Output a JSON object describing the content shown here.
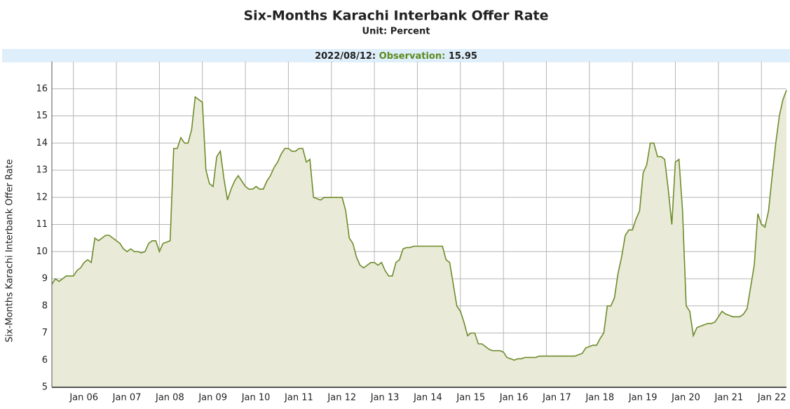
{
  "chart_data": {
    "type": "area",
    "title": "Six-Months Karachi Interbank Offer Rate",
    "subtitle": "Unit: Percent",
    "observation": {
      "date": "2022/08/12:",
      "label": "Observation:",
      "value": 15.95
    },
    "ylabel": "Six-Months Karachi Interbank Offer Rate",
    "color": "#6e8b2b",
    "fill": "#e9ebd8",
    "grid": true,
    "xlim": [
      "2005-07",
      "2022-08"
    ],
    "ylim": [
      5,
      17
    ],
    "yticks": [
      5,
      6,
      7,
      8,
      9,
      10,
      11,
      12,
      13,
      14,
      15,
      16
    ],
    "xticks": [
      {
        "value": "2006-01",
        "label": "Jan 06"
      },
      {
        "value": "2007-01",
        "label": "Jan 07"
      },
      {
        "value": "2008-01",
        "label": "Jan 08"
      },
      {
        "value": "2009-01",
        "label": "Jan 09"
      },
      {
        "value": "2010-01",
        "label": "Jan 10"
      },
      {
        "value": "2011-01",
        "label": "Jan 11"
      },
      {
        "value": "2012-01",
        "label": "Jan 12"
      },
      {
        "value": "2013-01",
        "label": "Jan 13"
      },
      {
        "value": "2014-01",
        "label": "Jan 14"
      },
      {
        "value": "2015-01",
        "label": "Jan 15"
      },
      {
        "value": "2016-01",
        "label": "Jan 16"
      },
      {
        "value": "2017-01",
        "label": "Jan 17"
      },
      {
        "value": "2018-01",
        "label": "Jan 18"
      },
      {
        "value": "2019-01",
        "label": "Jan 19"
      },
      {
        "value": "2020-01",
        "label": "Jan 20"
      },
      {
        "value": "2021-01",
        "label": "Jan 21"
      },
      {
        "value": "2022-01",
        "label": "Jan 22"
      }
    ],
    "x": [
      "2005-07",
      "2005-08",
      "2005-09",
      "2005-10",
      "2005-11",
      "2005-12",
      "2006-01",
      "2006-02",
      "2006-03",
      "2006-04",
      "2006-05",
      "2006-06",
      "2006-07",
      "2006-08",
      "2006-09",
      "2006-10",
      "2006-11",
      "2006-12",
      "2007-01",
      "2007-02",
      "2007-03",
      "2007-04",
      "2007-05",
      "2007-06",
      "2007-07",
      "2007-08",
      "2007-09",
      "2007-10",
      "2007-11",
      "2007-12",
      "2008-01",
      "2008-02",
      "2008-03",
      "2008-04",
      "2008-05",
      "2008-06",
      "2008-07",
      "2008-08",
      "2008-09",
      "2008-10",
      "2008-11",
      "2008-12",
      "2009-01",
      "2009-02",
      "2009-03",
      "2009-04",
      "2009-05",
      "2009-06",
      "2009-07",
      "2009-08",
      "2009-09",
      "2009-10",
      "2009-11",
      "2009-12",
      "2010-01",
      "2010-02",
      "2010-03",
      "2010-04",
      "2010-05",
      "2010-06",
      "2010-07",
      "2010-08",
      "2010-09",
      "2010-10",
      "2010-11",
      "2010-12",
      "2011-01",
      "2011-02",
      "2011-03",
      "2011-04",
      "2011-05",
      "2011-06",
      "2011-07",
      "2011-08",
      "2011-09",
      "2011-10",
      "2011-11",
      "2011-12",
      "2012-01",
      "2012-02",
      "2012-03",
      "2012-04",
      "2012-05",
      "2012-06",
      "2012-07",
      "2012-08",
      "2012-09",
      "2012-10",
      "2012-11",
      "2012-12",
      "2013-01",
      "2013-02",
      "2013-03",
      "2013-04",
      "2013-05",
      "2013-06",
      "2013-07",
      "2013-08",
      "2013-09",
      "2013-10",
      "2013-11",
      "2013-12",
      "2014-01",
      "2014-02",
      "2014-03",
      "2014-04",
      "2014-05",
      "2014-06",
      "2014-07",
      "2014-08",
      "2014-09",
      "2014-10",
      "2014-11",
      "2014-12",
      "2015-01",
      "2015-02",
      "2015-03",
      "2015-04",
      "2015-05",
      "2015-06",
      "2015-07",
      "2015-08",
      "2015-09",
      "2015-10",
      "2015-11",
      "2015-12",
      "2016-01",
      "2016-02",
      "2016-03",
      "2016-04",
      "2016-05",
      "2016-06",
      "2016-07",
      "2016-08",
      "2016-09",
      "2016-10",
      "2016-11",
      "2016-12",
      "2017-01",
      "2017-02",
      "2017-03",
      "2017-04",
      "2017-05",
      "2017-06",
      "2017-07",
      "2017-08",
      "2017-09",
      "2017-10",
      "2017-11",
      "2017-12",
      "2018-01",
      "2018-02",
      "2018-03",
      "2018-04",
      "2018-05",
      "2018-06",
      "2018-07",
      "2018-08",
      "2018-09",
      "2018-10",
      "2018-11",
      "2018-12",
      "2019-01",
      "2019-02",
      "2019-03",
      "2019-04",
      "2019-05",
      "2019-06",
      "2019-07",
      "2019-08",
      "2019-09",
      "2019-10",
      "2019-11",
      "2019-12",
      "2020-01",
      "2020-02",
      "2020-03",
      "2020-04",
      "2020-05",
      "2020-06",
      "2020-07",
      "2020-08",
      "2020-09",
      "2020-10",
      "2020-11",
      "2020-12",
      "2021-01",
      "2021-02",
      "2021-03",
      "2021-04",
      "2021-05",
      "2021-06",
      "2021-07",
      "2021-08",
      "2021-09",
      "2021-10",
      "2021-11",
      "2021-12",
      "2022-01",
      "2022-02",
      "2022-03",
      "2022-04",
      "2022-05",
      "2022-06",
      "2022-07",
      "2022-08"
    ],
    "values": [
      8.8,
      9.0,
      8.9,
      9.0,
      9.1,
      9.1,
      9.1,
      9.3,
      9.4,
      9.6,
      9.7,
      9.6,
      10.5,
      10.4,
      10.5,
      10.6,
      10.6,
      10.5,
      10.4,
      10.3,
      10.1,
      10.0,
      10.1,
      10.0,
      10.0,
      9.95,
      10.0,
      10.3,
      10.4,
      10.4,
      10.0,
      10.3,
      10.35,
      10.4,
      13.8,
      13.8,
      14.2,
      14.0,
      14.0,
      14.5,
      15.7,
      15.6,
      15.5,
      13.0,
      12.5,
      12.4,
      13.5,
      13.7,
      12.7,
      11.9,
      12.3,
      12.6,
      12.8,
      12.6,
      12.4,
      12.3,
      12.3,
      12.4,
      12.3,
      12.3,
      12.6,
      12.8,
      13.1,
      13.3,
      13.6,
      13.8,
      13.8,
      13.7,
      13.7,
      13.8,
      13.8,
      13.3,
      13.4,
      12.0,
      11.95,
      11.9,
      12.0,
      12.0,
      12.0,
      12.0,
      12.0,
      12.0,
      11.5,
      10.5,
      10.3,
      9.8,
      9.5,
      9.4,
      9.5,
      9.6,
      9.6,
      9.5,
      9.6,
      9.3,
      9.1,
      9.1,
      9.6,
      9.7,
      10.1,
      10.15,
      10.15,
      10.2,
      10.2,
      10.2,
      10.2,
      10.2,
      10.2,
      10.2,
      10.2,
      10.2,
      9.7,
      9.6,
      8.8,
      8.0,
      7.8,
      7.4,
      6.9,
      7.0,
      7.0,
      6.6,
      6.6,
      6.5,
      6.4,
      6.35,
      6.35,
      6.35,
      6.3,
      6.1,
      6.05,
      6.0,
      6.05,
      6.05,
      6.1,
      6.1,
      6.1,
      6.1,
      6.15,
      6.15,
      6.15,
      6.15,
      6.15,
      6.15,
      6.15,
      6.15,
      6.15,
      6.15,
      6.15,
      6.2,
      6.25,
      6.45,
      6.5,
      6.55,
      6.55,
      6.8,
      7.0,
      8.0,
      8.0,
      8.3,
      9.2,
      9.8,
      10.6,
      10.8,
      10.8,
      11.2,
      11.5,
      12.9,
      13.2,
      14.0,
      14.0,
      13.5,
      13.5,
      13.4,
      12.3,
      11.0,
      13.3,
      13.4,
      11.5,
      8.0,
      7.8,
      6.9,
      7.2,
      7.25,
      7.3,
      7.35,
      7.35,
      7.4,
      7.6,
      7.8,
      7.7,
      7.65,
      7.6,
      7.6,
      7.6,
      7.7,
      7.9,
      8.7,
      9.5,
      11.4,
      11.0,
      10.9,
      11.5,
      12.8,
      14.0,
      15.0,
      15.6,
      15.95
    ]
  }
}
